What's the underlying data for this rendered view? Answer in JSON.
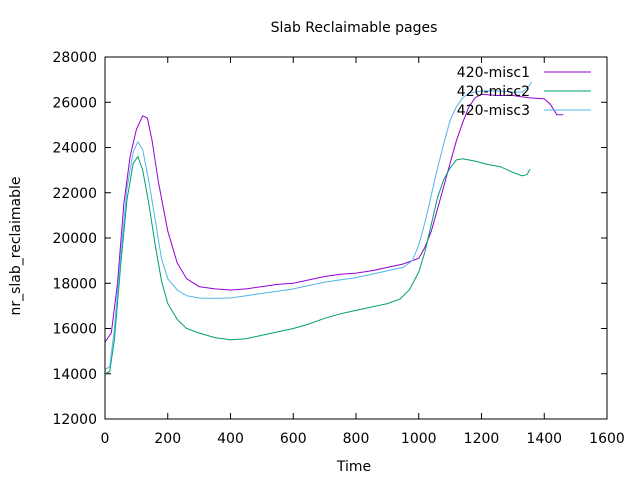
{
  "chart_data": {
    "type": "line",
    "title": "Slab Reclaimable pages",
    "xlabel": "Time",
    "ylabel": "nr_slab_reclaimable",
    "xlim": [
      0,
      1600
    ],
    "ylim": [
      12000,
      28000
    ],
    "xticks": [
      0,
      200,
      400,
      600,
      800,
      1000,
      1200,
      1400,
      1600
    ],
    "yticks": [
      12000,
      14000,
      16000,
      18000,
      20000,
      22000,
      24000,
      26000,
      28000
    ],
    "xtick_labels": [
      "0",
      "200",
      "400",
      "600",
      "800",
      "1000",
      "1200",
      "1400",
      "1600"
    ],
    "ytick_labels": [
      "12000",
      "14000",
      "16000",
      "18000",
      "20000",
      "22000",
      "24000",
      "26000",
      "28000"
    ],
    "grid": false,
    "legend_position": "top-right",
    "series": [
      {
        "name": "420-misc1",
        "color": "#9400d3",
        "points": [
          [
            0,
            15400
          ],
          [
            20,
            15800
          ],
          [
            40,
            18000
          ],
          [
            60,
            21500
          ],
          [
            80,
            23600
          ],
          [
            100,
            24800
          ],
          [
            120,
            25400
          ],
          [
            135,
            25300
          ],
          [
            150,
            24300
          ],
          [
            170,
            22500
          ],
          [
            200,
            20300
          ],
          [
            230,
            18900
          ],
          [
            260,
            18200
          ],
          [
            300,
            17850
          ],
          [
            350,
            17750
          ],
          [
            400,
            17700
          ],
          [
            450,
            17750
          ],
          [
            500,
            17850
          ],
          [
            550,
            17950
          ],
          [
            600,
            18000
          ],
          [
            650,
            18150
          ],
          [
            700,
            18300
          ],
          [
            750,
            18400
          ],
          [
            800,
            18450
          ],
          [
            850,
            18550
          ],
          [
            900,
            18700
          ],
          [
            950,
            18850
          ],
          [
            1000,
            19100
          ],
          [
            1020,
            19600
          ],
          [
            1040,
            20300
          ],
          [
            1060,
            21300
          ],
          [
            1080,
            22300
          ],
          [
            1100,
            23300
          ],
          [
            1120,
            24300
          ],
          [
            1140,
            25100
          ],
          [
            1160,
            25800
          ],
          [
            1180,
            26200
          ],
          [
            1200,
            26350
          ],
          [
            1250,
            26300
          ],
          [
            1300,
            26300
          ],
          [
            1350,
            26200
          ],
          [
            1400,
            26150
          ],
          [
            1420,
            25900
          ],
          [
            1440,
            25450
          ],
          [
            1460,
            25450
          ]
        ]
      },
      {
        "name": "420-misc2",
        "color": "#009e73",
        "points": [
          [
            0,
            14000
          ],
          [
            15,
            14100
          ],
          [
            30,
            15500
          ],
          [
            50,
            18800
          ],
          [
            70,
            21700
          ],
          [
            90,
            23300
          ],
          [
            105,
            23600
          ],
          [
            120,
            23000
          ],
          [
            140,
            21500
          ],
          [
            160,
            19700
          ],
          [
            180,
            18100
          ],
          [
            200,
            17100
          ],
          [
            230,
            16400
          ],
          [
            260,
            16000
          ],
          [
            300,
            15800
          ],
          [
            350,
            15600
          ],
          [
            400,
            15500
          ],
          [
            450,
            15550
          ],
          [
            500,
            15700
          ],
          [
            550,
            15850
          ],
          [
            600,
            16000
          ],
          [
            650,
            16200
          ],
          [
            700,
            16450
          ],
          [
            750,
            16650
          ],
          [
            800,
            16800
          ],
          [
            850,
            16950
          ],
          [
            900,
            17100
          ],
          [
            940,
            17300
          ],
          [
            970,
            17700
          ],
          [
            1000,
            18500
          ],
          [
            1020,
            19400
          ],
          [
            1040,
            20600
          ],
          [
            1060,
            21800
          ],
          [
            1080,
            22600
          ],
          [
            1100,
            23100
          ],
          [
            1120,
            23450
          ],
          [
            1140,
            23500
          ],
          [
            1180,
            23400
          ],
          [
            1220,
            23250
          ],
          [
            1260,
            23150
          ],
          [
            1300,
            22900
          ],
          [
            1330,
            22750
          ],
          [
            1345,
            22800
          ],
          [
            1355,
            23050
          ]
        ]
      },
      {
        "name": "420-misc3",
        "color": "#56b4e9",
        "points": [
          [
            0,
            14200
          ],
          [
            15,
            14300
          ],
          [
            30,
            16000
          ],
          [
            50,
            19200
          ],
          [
            70,
            22200
          ],
          [
            90,
            23800
          ],
          [
            105,
            24250
          ],
          [
            120,
            23900
          ],
          [
            140,
            22500
          ],
          [
            160,
            20800
          ],
          [
            180,
            19100
          ],
          [
            200,
            18200
          ],
          [
            230,
            17700
          ],
          [
            260,
            17450
          ],
          [
            300,
            17350
          ],
          [
            350,
            17330
          ],
          [
            400,
            17350
          ],
          [
            450,
            17450
          ],
          [
            500,
            17550
          ],
          [
            550,
            17650
          ],
          [
            600,
            17750
          ],
          [
            650,
            17900
          ],
          [
            700,
            18050
          ],
          [
            750,
            18150
          ],
          [
            800,
            18250
          ],
          [
            850,
            18400
          ],
          [
            900,
            18550
          ],
          [
            950,
            18700
          ],
          [
            980,
            19000
          ],
          [
            1000,
            19700
          ],
          [
            1020,
            20700
          ],
          [
            1040,
            21900
          ],
          [
            1060,
            23100
          ],
          [
            1080,
            24200
          ],
          [
            1100,
            25200
          ],
          [
            1120,
            25800
          ],
          [
            1140,
            26200
          ],
          [
            1160,
            26400
          ],
          [
            1200,
            26500
          ],
          [
            1250,
            26500
          ],
          [
            1300,
            26450
          ],
          [
            1330,
            26450
          ],
          [
            1350,
            26700
          ],
          [
            1360,
            26900
          ]
        ]
      }
    ]
  }
}
